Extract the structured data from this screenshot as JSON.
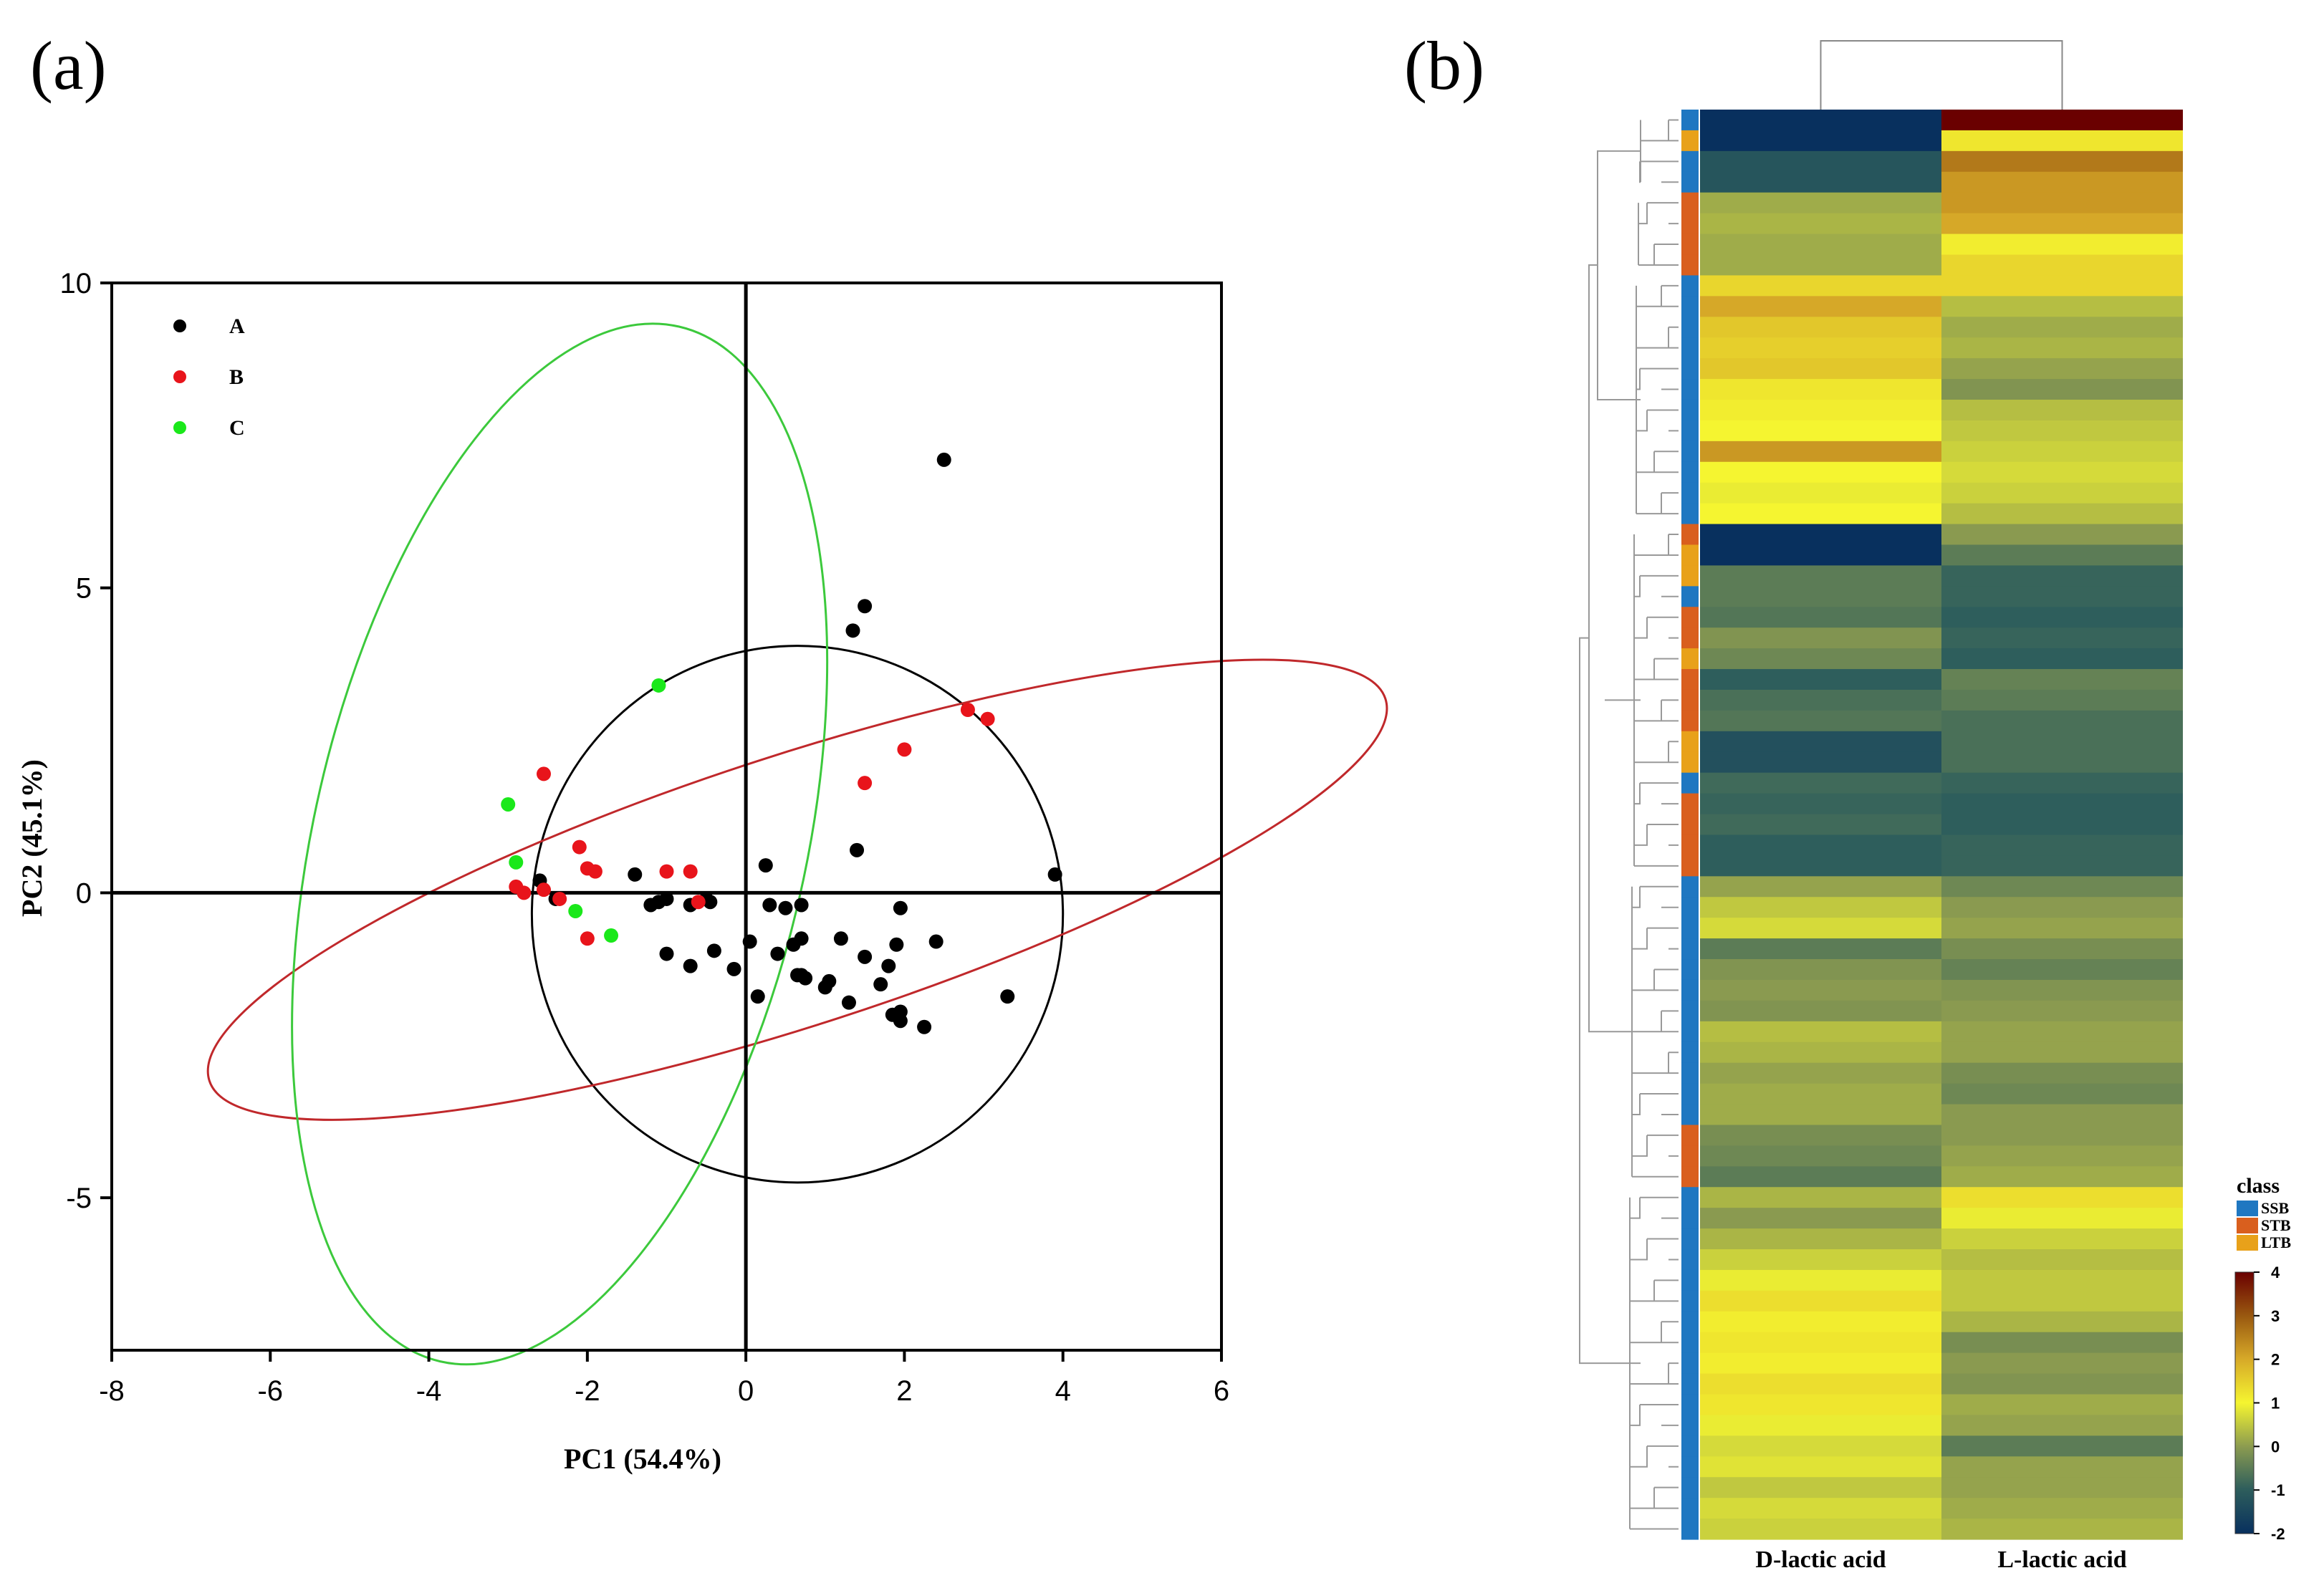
{
  "panel_labels": {
    "a": "(a)",
    "b": "(b)"
  },
  "chart_data": [
    {
      "type": "scatter",
      "title": "",
      "xlabel": "PC1 (54.4%)",
      "ylabel": "PC2 (45.1%)",
      "xlim": [
        -8,
        6
      ],
      "ylim": [
        -7.5,
        10
      ],
      "xticks": [
        -8,
        -6,
        -4,
        -2,
        0,
        2,
        4,
        6
      ],
      "yticks": [
        -5,
        0,
        5,
        10
      ],
      "legend_position": "top-left",
      "series": [
        {
          "name": "A",
          "color": "#000000",
          "points": [
            [
              2.5,
              7.1
            ],
            [
              1.5,
              4.7
            ],
            [
              1.35,
              4.3
            ],
            [
              3.9,
              0.3
            ],
            [
              0.25,
              0.45
            ],
            [
              1.4,
              0.7
            ],
            [
              -1.4,
              0.3
            ],
            [
              -2.6,
              0.2
            ],
            [
              -2.4,
              -0.1
            ],
            [
              -1.2,
              -0.2
            ],
            [
              -1.1,
              -0.15
            ],
            [
              -1.0,
              -0.1
            ],
            [
              -0.7,
              -0.2
            ],
            [
              -0.5,
              -0.1
            ],
            [
              -0.45,
              -0.15
            ],
            [
              0.3,
              -0.2
            ],
            [
              0.5,
              -0.25
            ],
            [
              0.7,
              -0.2
            ],
            [
              1.95,
              -0.25
            ],
            [
              2.4,
              -0.8
            ],
            [
              1.9,
              -0.85
            ],
            [
              1.2,
              -0.75
            ],
            [
              1.5,
              -1.05
            ],
            [
              1.8,
              -1.2
            ],
            [
              1.7,
              -1.5
            ],
            [
              1.05,
              -1.45
            ],
            [
              1.0,
              -1.55
            ],
            [
              0.65,
              -1.35
            ],
            [
              0.7,
              -1.35
            ],
            [
              0.75,
              -1.4
            ],
            [
              0.4,
              -1.0
            ],
            [
              0.7,
              -0.75
            ],
            [
              0.6,
              -0.85
            ],
            [
              0.05,
              -0.8
            ],
            [
              -0.4,
              -0.95
            ],
            [
              -0.7,
              -1.2
            ],
            [
              -1.0,
              -1.0
            ],
            [
              -0.15,
              -1.25
            ],
            [
              0.15,
              -1.7
            ],
            [
              1.3,
              -1.8
            ],
            [
              1.85,
              -2.0
            ],
            [
              1.95,
              -2.1
            ],
            [
              1.95,
              -1.95
            ],
            [
              2.25,
              -2.2
            ],
            [
              3.3,
              -1.7
            ]
          ]
        },
        {
          "name": "B",
          "color": "#e8141b",
          "points": [
            [
              2.8,
              3.0
            ],
            [
              3.05,
              2.85
            ],
            [
              2.0,
              2.35
            ],
            [
              1.5,
              1.8
            ],
            [
              -2.55,
              1.95
            ],
            [
              -2.1,
              0.75
            ],
            [
              -2.0,
              0.4
            ],
            [
              -1.9,
              0.35
            ],
            [
              -1.0,
              0.35
            ],
            [
              -0.7,
              0.35
            ],
            [
              -2.9,
              0.1
            ],
            [
              -2.8,
              0.0
            ],
            [
              -2.55,
              0.05
            ],
            [
              -2.35,
              -0.1
            ],
            [
              -2.0,
              -0.75
            ],
            [
              -0.6,
              -0.15
            ]
          ]
        },
        {
          "name": "C",
          "color": "#1ae81a",
          "points": [
            [
              -1.1,
              3.4
            ],
            [
              -3.0,
              1.45
            ],
            [
              -2.9,
              0.5
            ],
            [
              -2.15,
              -0.3
            ],
            [
              -1.7,
              -0.7
            ]
          ]
        }
      ],
      "ellipses": [
        {
          "group": "A",
          "color": "#000000",
          "cx": 0.65,
          "cy": -0.35,
          "rx": 3.35,
          "ry": 4.4,
          "angle_deg": 0
        },
        {
          "group": "B",
          "color": "#c0282b",
          "cx": 0.65,
          "cy": 0.05,
          "rx": 7.8,
          "ry": 1.7,
          "angle_deg": 18
        },
        {
          "group": "C",
          "color": "#3cc93c",
          "cx": -2.35,
          "cy": 0.8,
          "rx": 6.7,
          "ry": 3.1,
          "angle_deg": 77
        }
      ]
    },
    {
      "type": "heatmap",
      "columns": [
        "D-lactic acid",
        "L-lactic acid"
      ],
      "color_scale": {
        "min": -2,
        "max": 4,
        "ticks": [
          4,
          3,
          2,
          1,
          0,
          -1,
          -2
        ]
      },
      "class_legend": {
        "title": "class",
        "items": [
          {
            "name": "SSB",
            "color": "#1f77c1"
          },
          {
            "name": "STB",
            "color": "#d95f1e"
          },
          {
            "name": "LTB",
            "color": "#e8a11a"
          }
        ]
      },
      "row_classes": [
        "SSB",
        "LTB",
        "SSB",
        "SSB",
        "STB",
        "STB",
        "STB",
        "STB",
        "SSB",
        "SSB",
        "SSB",
        "SSB",
        "SSB",
        "SSB",
        "SSB",
        "SSB",
        "SSB",
        "SSB",
        "SSB",
        "SSB",
        "STB",
        "LTB",
        "LTB",
        "SSB",
        "STB",
        "STB",
        "LTB",
        "STB",
        "STB",
        "STB",
        "LTB",
        "LTB",
        "SSB",
        "STB",
        "STB",
        "STB",
        "STB",
        "SSB",
        "SSB",
        "SSB",
        "SSB",
        "SSB",
        "SSB",
        "SSB",
        "SSB",
        "SSB",
        "SSB",
        "SSB",
        "SSB",
        "STB",
        "STB",
        "STB",
        "SSB",
        "SSB",
        "SSB",
        "SSB",
        "SSB",
        "SSB",
        "SSB",
        "SSB",
        "SSB",
        "SSB",
        "SSB",
        "SSB",
        "SSB",
        "SSB",
        "SSB",
        "SSB",
        "SSB"
      ],
      "values": [
        [
          -2.0,
          4.0
        ],
        [
          -2.0,
          1.2
        ],
        [
          -1.2,
          2.6
        ],
        [
          -1.2,
          2.2
        ],
        [
          0.2,
          2.2
        ],
        [
          0.3,
          2.0
        ],
        [
          0.2,
          1.1
        ],
        [
          0.2,
          1.4
        ],
        [
          1.4,
          1.4
        ],
        [
          2.0,
          0.4
        ],
        [
          1.6,
          0.2
        ],
        [
          1.5,
          0.3
        ],
        [
          1.6,
          0.1
        ],
        [
          1.2,
          -0.1
        ],
        [
          1.1,
          0.4
        ],
        [
          1.0,
          0.5
        ],
        [
          2.2,
          0.6
        ],
        [
          1.0,
          0.7
        ],
        [
          0.9,
          0.6
        ],
        [
          1.0,
          0.4
        ],
        [
          -2.0,
          0.0
        ],
        [
          -2.0,
          -0.5
        ],
        [
          -0.5,
          -0.9
        ],
        [
          -0.5,
          -0.9
        ],
        [
          -0.6,
          -1.0
        ],
        [
          -0.1,
          -0.9
        ],
        [
          -0.3,
          -1.0
        ],
        [
          -1.0,
          -0.4
        ],
        [
          -0.7,
          -0.5
        ],
        [
          -0.6,
          -0.7
        ],
        [
          -1.3,
          -0.7
        ],
        [
          -1.3,
          -0.7
        ],
        [
          -0.8,
          -0.9
        ],
        [
          -0.9,
          -1.0
        ],
        [
          -0.8,
          -1.0
        ],
        [
          -1.0,
          -0.9
        ],
        [
          -1.0,
          -0.9
        ],
        [
          0.1,
          -0.3
        ],
        [
          0.5,
          0.0
        ],
        [
          0.7,
          0.1
        ],
        [
          -0.5,
          -0.2
        ],
        [
          -0.1,
          -0.4
        ],
        [
          0.0,
          -0.1
        ],
        [
          -0.1,
          0.0
        ],
        [
          0.4,
          0.1
        ],
        [
          0.3,
          0.1
        ],
        [
          0.1,
          -0.2
        ],
        [
          0.2,
          -0.3
        ],
        [
          0.2,
          0.0
        ],
        [
          -0.2,
          0.0
        ],
        [
          -0.3,
          0.1
        ],
        [
          -0.5,
          0.2
        ],
        [
          0.3,
          1.3
        ],
        [
          0.0,
          0.9
        ],
        [
          0.3,
          0.6
        ],
        [
          0.6,
          0.4
        ],
        [
          0.9,
          0.5
        ],
        [
          1.3,
          0.5
        ],
        [
          1.1,
          0.3
        ],
        [
          1.2,
          -0.2
        ],
        [
          1.1,
          0.0
        ],
        [
          1.3,
          -0.1
        ],
        [
          1.2,
          0.2
        ],
        [
          0.9,
          0.1
        ],
        [
          0.7,
          -0.5
        ],
        [
          0.8,
          0.1
        ],
        [
          0.5,
          0.1
        ],
        [
          0.7,
          0.2
        ],
        [
          0.6,
          0.3
        ]
      ]
    }
  ]
}
